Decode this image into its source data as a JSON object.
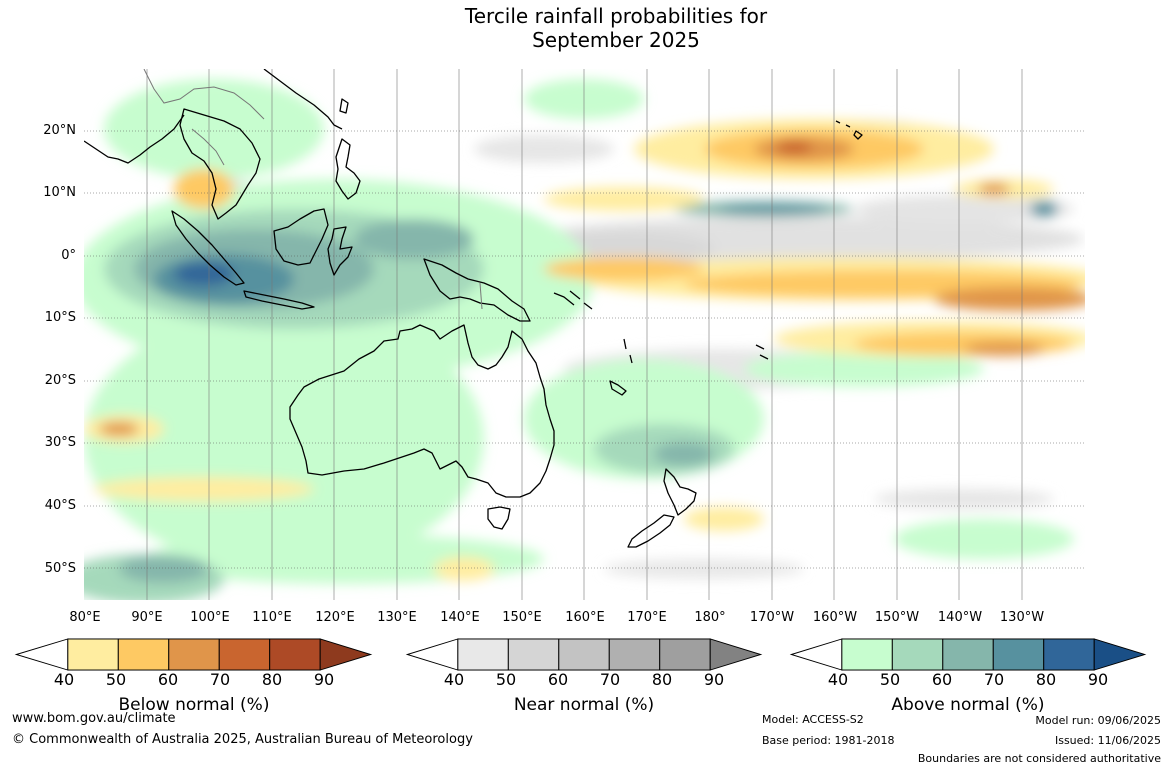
{
  "title": {
    "line1": "Tercile rainfall probabilities for",
    "line2": "September 2025"
  },
  "lat_labels": [
    "20°N",
    "10°N",
    "0°",
    "10°S",
    "20°S",
    "30°S",
    "40°S",
    "50°S"
  ],
  "lon_labels": [
    "80°E",
    "90°E",
    "100°E",
    "110°E",
    "120°E",
    "130°E",
    "140°E",
    "150°E",
    "160°E",
    "170°E",
    "180°",
    "170°W",
    "160°W",
    "150°W",
    "140°W",
    "130°W"
  ],
  "legends": [
    {
      "title": "Below normal (%)",
      "ticks": [
        "40",
        "50",
        "60",
        "70",
        "80",
        "90"
      ],
      "colors": [
        "#ffffff",
        "#ffeda0",
        "#fec963",
        "#e0954a",
        "#c9652f",
        "#ad4a26",
        "#8e3a1e"
      ]
    },
    {
      "title": "Near normal (%)",
      "ticks": [
        "40",
        "50",
        "60",
        "70",
        "80",
        "90"
      ],
      "colors": [
        "#ffffff",
        "#e8e8e8",
        "#d5d5d5",
        "#c3c3c3",
        "#b0b0b0",
        "#9f9f9f",
        "#828282"
      ]
    },
    {
      "title": "Above normal (%)",
      "ticks": [
        "40",
        "50",
        "60",
        "70",
        "80",
        "90"
      ],
      "colors": [
        "#ffffff",
        "#c7fdcf",
        "#a5d9bb",
        "#85b6ab",
        "#57919f",
        "#306699",
        "#1a4f86"
      ]
    }
  ],
  "footer": {
    "website": "www.bom.gov.au/climate",
    "copyright": "© Commonwealth of Australia 2025, Australian Bureau of Meteorology",
    "model": "Model: ACCESS-S2",
    "base_period": "Base period: 1981-2018",
    "model_run": "Model run: 09/06/2025",
    "issued": "Issued: 11/06/2025",
    "disclaimer": "Boundaries are not considered authoritative"
  }
}
